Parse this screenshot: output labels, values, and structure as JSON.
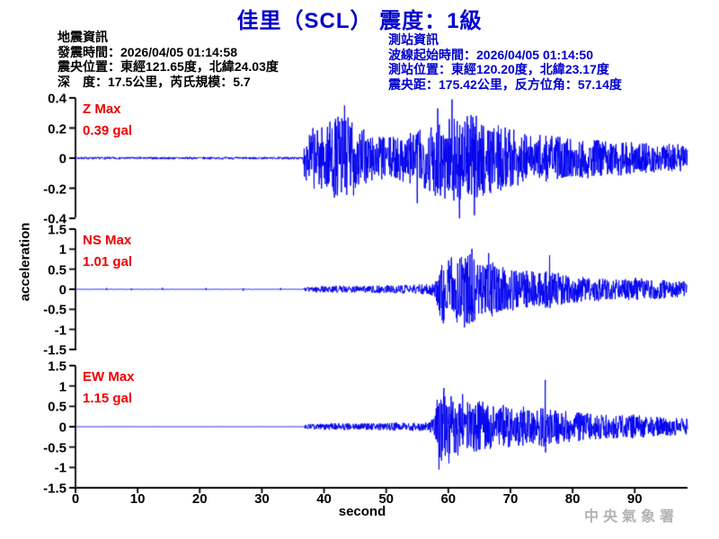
{
  "title": "佳里（SCL） 震度：1級",
  "earthquake_info": {
    "heading": "地震資訊",
    "origin_time": "發震時間：2026/04/05 01:14:58",
    "epicenter": "震央位置：東經121.65度，北緯24.03度",
    "depth_magnitude": "深　度：17.5公里，芮氏規模：5.7"
  },
  "station_info": {
    "heading": "測站資訊",
    "wave_start_time": "波線起始時間：2026/04/05 01:14:50",
    "station_location": "測站位置：東經120.20度，北緯23.17度",
    "distance_azimuth": "震央距：175.42公里，反方位角：57.14度"
  },
  "watermark": "中央氣象署",
  "colors": {
    "title_blue": "#0000cc",
    "trace_blue": "#0000ee",
    "label_red": "#ee0000",
    "axis_black": "#000000",
    "watermark_gray": "#b3b3b3"
  },
  "chart_data": {
    "type": "line",
    "subtype": "seismogram",
    "xlabel": "second",
    "ylabel": "acceleration",
    "x_range": [
      0,
      98.5
    ],
    "x_ticks": [
      0,
      10,
      20,
      30,
      40,
      50,
      60,
      70,
      80,
      90
    ],
    "grid": false,
    "legend": false,
    "traces": [
      {
        "name": "Z",
        "label": "Z Max",
        "max": "0.39 gal",
        "max_value": 0.39,
        "unit": "gal",
        "ylim": [
          -0.4,
          0.4
        ],
        "y_ticks": [
          0.4,
          0.2,
          0,
          -0.2,
          -0.4
        ],
        "p_onset_s": 36.8,
        "s_onset_s": 57.5,
        "seed": 7,
        "envelope": [
          [
            0,
            0.008
          ],
          [
            36.6,
            0.008
          ],
          [
            36.9,
            0.15
          ],
          [
            38,
            0.2
          ],
          [
            40,
            0.22
          ],
          [
            43,
            0.3
          ],
          [
            44,
            0.28
          ],
          [
            46,
            0.2
          ],
          [
            48,
            0.16
          ],
          [
            50,
            0.14
          ],
          [
            52,
            0.15
          ],
          [
            54,
            0.18
          ],
          [
            56,
            0.2
          ],
          [
            58,
            0.26
          ],
          [
            60,
            0.3
          ],
          [
            62,
            0.28
          ],
          [
            64,
            0.3
          ],
          [
            66,
            0.24
          ],
          [
            68,
            0.22
          ],
          [
            70,
            0.2
          ],
          [
            72,
            0.17
          ],
          [
            74,
            0.15
          ],
          [
            76,
            0.16
          ],
          [
            78,
            0.14
          ],
          [
            80,
            0.13
          ],
          [
            82,
            0.14
          ],
          [
            84,
            0.12
          ],
          [
            86,
            0.11
          ],
          [
            88,
            0.12
          ],
          [
            90,
            0.1
          ],
          [
            92,
            0.1
          ],
          [
            94,
            0.09
          ],
          [
            96,
            0.1
          ],
          [
            98.5,
            0.08
          ]
        ],
        "spikes": [
          [
            43.3,
            0.35
          ],
          [
            55,
            -0.3
          ],
          [
            58.3,
            0.33
          ],
          [
            60.6,
            0.39
          ],
          [
            61.8,
            -0.4
          ],
          [
            64.2,
            -0.38
          ]
        ]
      },
      {
        "name": "NS",
        "label": "NS Max",
        "max": "1.01 gal",
        "max_value": 1.01,
        "unit": "gal",
        "ylim": [
          -1.5,
          1.5
        ],
        "y_ticks": [
          1.5,
          1,
          0.5,
          0,
          -0.5,
          -1,
          -1.5
        ],
        "p_onset_s": 37.0,
        "s_onset_s": 58.2,
        "seed": 13,
        "envelope": [
          [
            0,
            0.004
          ],
          [
            36.6,
            0.004
          ],
          [
            37,
            0.05
          ],
          [
            38,
            0.07
          ],
          [
            40,
            0.08
          ],
          [
            43,
            0.09
          ],
          [
            46,
            0.08
          ],
          [
            49,
            0.1
          ],
          [
            52,
            0.1
          ],
          [
            55,
            0.12
          ],
          [
            57,
            0.13
          ],
          [
            57.8,
            0.2
          ],
          [
            58.3,
            0.6
          ],
          [
            59,
            0.8
          ],
          [
            60,
            0.75
          ],
          [
            61,
            0.85
          ],
          [
            62,
            0.8
          ],
          [
            63,
            0.9
          ],
          [
            64,
            0.95
          ],
          [
            65,
            0.7
          ],
          [
            66,
            0.6
          ],
          [
            67,
            0.7
          ],
          [
            68,
            0.6
          ],
          [
            69,
            0.55
          ],
          [
            70,
            0.6
          ],
          [
            71,
            0.5
          ],
          [
            72,
            0.45
          ],
          [
            73,
            0.5
          ],
          [
            74,
            0.45
          ],
          [
            75,
            0.4
          ],
          [
            76,
            0.5
          ],
          [
            77,
            0.45
          ],
          [
            78,
            0.4
          ],
          [
            79,
            0.35
          ],
          [
            80,
            0.35
          ],
          [
            82,
            0.3
          ],
          [
            84,
            0.3
          ],
          [
            86,
            0.25
          ],
          [
            88,
            0.25
          ],
          [
            90,
            0.3
          ],
          [
            92,
            0.25
          ],
          [
            94,
            0.25
          ],
          [
            96,
            0.2
          ],
          [
            98.5,
            0.2
          ]
        ],
        "spikes": [
          [
            5,
            0.03
          ],
          [
            9,
            -0.025
          ],
          [
            14,
            0.035
          ],
          [
            21,
            0.03
          ],
          [
            27,
            -0.04
          ],
          [
            33,
            0.03
          ],
          [
            59.2,
            -0.85
          ],
          [
            62.6,
            -0.95
          ],
          [
            63.8,
            1.01
          ],
          [
            66.5,
            0.9
          ],
          [
            76.3,
            0.85
          ]
        ]
      },
      {
        "name": "EW",
        "label": "EW Max",
        "max": "1.15 gal",
        "max_value": 1.15,
        "unit": "gal",
        "ylim": [
          -1.5,
          1.5
        ],
        "y_ticks": [
          1.5,
          1,
          0.5,
          0,
          -0.5,
          -1,
          -1.5
        ],
        "p_onset_s": 37.0,
        "s_onset_s": 58.2,
        "seed": 21,
        "envelope": [
          [
            0,
            0.002
          ],
          [
            36.6,
            0.002
          ],
          [
            37,
            0.05
          ],
          [
            38,
            0.06
          ],
          [
            40,
            0.08
          ],
          [
            43,
            0.09
          ],
          [
            46,
            0.08
          ],
          [
            49,
            0.09
          ],
          [
            52,
            0.1
          ],
          [
            55,
            0.1
          ],
          [
            57,
            0.12
          ],
          [
            57.9,
            0.3
          ],
          [
            58.3,
            0.85
          ],
          [
            59,
            0.9
          ],
          [
            60,
            0.8
          ],
          [
            61,
            0.75
          ],
          [
            62,
            0.7
          ],
          [
            63,
            0.65
          ],
          [
            64,
            0.6
          ],
          [
            65,
            0.65
          ],
          [
            66,
            0.6
          ],
          [
            67,
            0.55
          ],
          [
            68,
            0.5
          ],
          [
            69,
            0.55
          ],
          [
            70,
            0.5
          ],
          [
            71,
            0.45
          ],
          [
            72,
            0.5
          ],
          [
            73,
            0.45
          ],
          [
            74,
            0.4
          ],
          [
            75,
            0.5
          ],
          [
            76,
            0.45
          ],
          [
            77,
            0.4
          ],
          [
            78,
            0.45
          ],
          [
            79,
            0.4
          ],
          [
            80,
            0.38
          ],
          [
            82,
            0.35
          ],
          [
            84,
            0.3
          ],
          [
            86,
            0.3
          ],
          [
            88,
            0.28
          ],
          [
            90,
            0.3
          ],
          [
            92,
            0.25
          ],
          [
            94,
            0.25
          ],
          [
            96,
            0.22
          ],
          [
            98.5,
            0.2
          ]
        ],
        "spikes": [
          [
            58.5,
            -1.05
          ],
          [
            59.3,
            0.95
          ],
          [
            60.1,
            -0.9
          ],
          [
            62.3,
            0.8
          ],
          [
            75.6,
            1.15
          ]
        ]
      }
    ]
  }
}
